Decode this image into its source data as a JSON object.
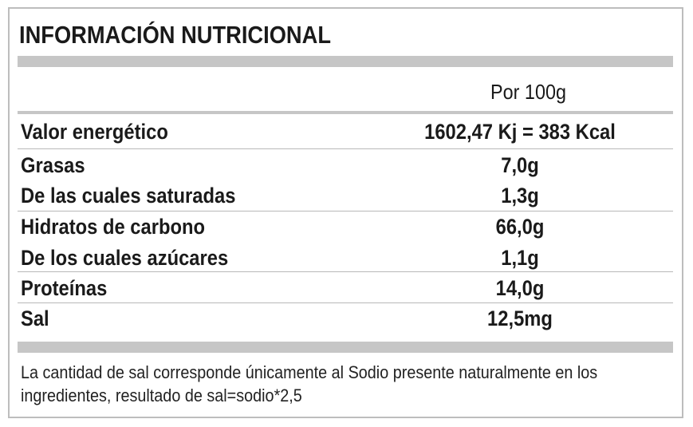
{
  "title": "INFORMACIÓN NUTRICIONAL",
  "column_header": "Por 100g",
  "rows": [
    {
      "label": "Valor energético",
      "value": "1602,47 Kj = 383 Kcal"
    },
    {
      "label": "Grasas",
      "value": "7,0g"
    },
    {
      "label": "De las cuales saturadas",
      "value": "1,3g"
    },
    {
      "label": "Hidratos de carbono",
      "value": "66,0g"
    },
    {
      "label": "De los cuales azúcares",
      "value": "1,1g"
    },
    {
      "label": "Proteínas",
      "value": "14,0g"
    },
    {
      "label": "Sal",
      "value": "12,5mg"
    }
  ],
  "footnote": {
    "line1": "La cantidad de sal corresponde únicamente al Sodio presente naturalmente en los",
    "line2": "ingredientes, resultado de sal=sodio*2,5"
  },
  "colors": {
    "bar": "#c6c6c6",
    "border": "#bdbdbd",
    "text": "#1a1a1a"
  }
}
